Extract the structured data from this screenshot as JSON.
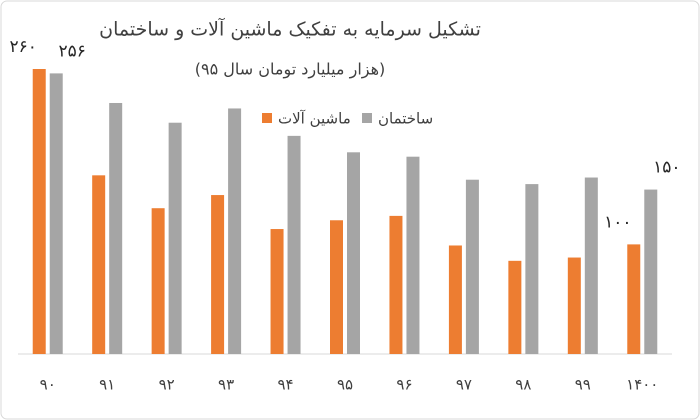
{
  "chart_data": {
    "type": "bar",
    "title": "تشکیل سرمایه به تفکیک ماشین آلات و ساختمان",
    "subtitle": "(هزار میلیارد تومان سال ۹۵)",
    "categories": [
      "۹۰",
      "۹۱",
      "۹۲",
      "۹۳",
      "۹۴",
      "۹۵",
      "۹۶",
      "۹۷",
      "۹۸",
      "۹۹",
      "۱۴۰۰"
    ],
    "series": [
      {
        "name": "ماشین آلات",
        "color": "#ed7d31",
        "values": [
          260,
          163,
          133,
          145,
          114,
          122,
          126,
          99,
          85,
          88,
          100
        ],
        "value_labels": [
          "۲۶۰",
          null,
          null,
          null,
          null,
          null,
          null,
          null,
          null,
          null,
          "۱۰۰"
        ]
      },
      {
        "name": "ساختمان",
        "color": "#a5a5a5",
        "values": [
          256,
          229,
          211,
          224,
          199,
          184,
          180,
          159,
          155,
          161,
          150
        ],
        "value_labels": [
          "۲۵۶",
          null,
          null,
          null,
          null,
          null,
          null,
          null,
          null,
          null,
          "۱۵۰"
        ]
      }
    ]
  }
}
